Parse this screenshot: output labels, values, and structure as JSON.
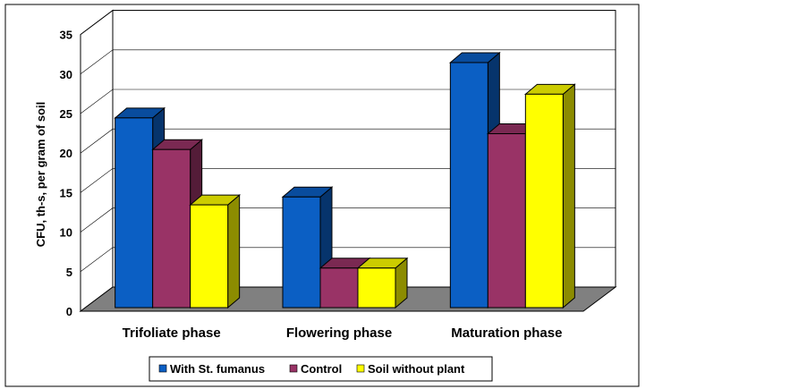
{
  "chart_data": {
    "type": "bar",
    "categories": [
      "Trifoliate phase",
      "Flowering phase",
      "Maturation phase"
    ],
    "series": [
      {
        "name": "With St. fumanus",
        "values": [
          24,
          14,
          31
        ],
        "color": "#0B5FC4"
      },
      {
        "name": "Control",
        "values": [
          20,
          5,
          22
        ],
        "color": "#993366"
      },
      {
        "name": "Soil without plant",
        "values": [
          13,
          5,
          27
        ],
        "color": "#FFFF00"
      }
    ],
    "ylabel": "CFU, th-s,  per gram of soil",
    "xlabel": "",
    "ylim": [
      0,
      35
    ],
    "yticks": [
      "0",
      "5",
      "10",
      "15",
      "20",
      "25",
      "30",
      "35"
    ],
    "grid": true,
    "legend": "bottom",
    "style": "3d-clustered-column",
    "floor_color": "#808080"
  }
}
